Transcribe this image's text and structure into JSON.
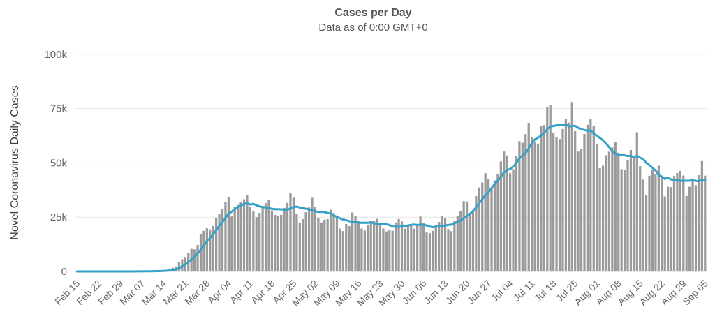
{
  "chart": {
    "title": "Cases per Day",
    "subtitle": "Data as of 0:00 GMT+0",
    "y_axis_title": "Novel Coronavirus Daily Cases"
  },
  "colors": {
    "bar": "#9a9a9a",
    "line": "#35a1c9",
    "grid": "#e6e6e6",
    "axis_line": "#ccd6eb",
    "tick_label": "#666666",
    "title_text": "#53575c"
  },
  "chart_data": {
    "type": "bar",
    "title": "Cases per Day",
    "subtitle": "Data as of 0:00 GMT+0",
    "xlabel": "",
    "ylabel": "Novel Coronavirus Daily Cases",
    "ylim": [
      0,
      100000
    ],
    "grid": "horizontal",
    "legend": "none",
    "start_date": "Feb 15",
    "end_date": "Sep 05",
    "x_tick_interval_days": 7,
    "x_tick_labels": [
      "Feb 15",
      "Feb 22",
      "Feb 29",
      "Mar 07",
      "Mar 14",
      "Mar 21",
      "Mar 28",
      "Apr 04",
      "Apr 11",
      "Apr 18",
      "Apr 25",
      "May 02",
      "May 09",
      "May 16",
      "May 23",
      "May 30",
      "Jun 06",
      "Jun 13",
      "Jun 20",
      "Jun 27",
      "Jul 04",
      "Jul 11",
      "Jul 18",
      "Jul 25",
      "Aug 01",
      "Aug 08",
      "Aug 15",
      "Aug 22",
      "Aug 29",
      "Sep 05"
    ],
    "y_ticks": [
      {
        "value": 0,
        "label": "0"
      },
      {
        "value": 25000,
        "label": "25k"
      },
      {
        "value": 50000,
        "label": "50k"
      },
      {
        "value": 75000,
        "label": "75k"
      },
      {
        "value": 100000,
        "label": "100k"
      }
    ],
    "series": [
      {
        "name": "Daily Cases",
        "type": "bar",
        "color": "#9a9a9a",
        "values": [
          0,
          0,
          0,
          0,
          0,
          0,
          0,
          0,
          0,
          0,
          0,
          0,
          0,
          0,
          8,
          6,
          23,
          20,
          31,
          26,
          59,
          78,
          130,
          120,
          202,
          271,
          331,
          277,
          511,
          777,
          1018,
          1708,
          2345,
          4257,
          5594,
          6347,
          8545,
          10410,
          10151,
          12226,
          17050,
          18695,
          19870,
          19376,
          20921,
          24742,
          26473,
          28819,
          32105,
          34196,
          25316,
          29595,
          30613,
          31898,
          33267,
          35098,
          29861,
          27620,
          25023,
          26922,
          30091,
          31449,
          32922,
          28123,
          25995,
          25468,
          26047,
          29266,
          31548,
          36188,
          33955,
          26509,
          22541,
          24132,
          27327,
          29517,
          33906,
          29744,
          24621,
          22593,
          23841,
          24128,
          28427,
          26906,
          25612,
          19731,
          18601,
          21841,
          20831,
          27143,
          25508,
          23293,
          19731,
          18873,
          21277,
          23285,
          23168,
          24266,
          21580,
          19790,
          18424,
          18957,
          18721,
          22577,
          24146,
          23024,
          19680,
          21182,
          20922,
          19699,
          21140,
          25290,
          22302,
          17919,
          17598,
          18678,
          21148,
          22800,
          25600,
          24500,
          19543,
          18577,
          23178,
          25576,
          27762,
          32411,
          32229,
          26079,
          27703,
          34700,
          38672,
          40949,
          45255,
          42486,
          38671,
          41940,
          44734,
          50655,
          55220,
          53448,
          45221,
          47102,
          53243,
          60021,
          59260,
          63247,
          68428,
          61719,
          59747,
          58858,
          67140,
          67404,
          75600,
          76570,
          63698,
          61795,
          60971,
          65594,
          70106,
          68524,
          78009,
          64582,
          55187,
          56336,
          63290,
          67574,
          70024,
          67023,
          58429,
          47576,
          48690,
          53520,
          55148,
          57120,
          59755,
          54686,
          47138,
          46754,
          51443,
          55911,
          52799,
          64107,
          48517,
          42303,
          35112,
          44091,
          46809,
          44857,
          48693,
          44079,
          34567,
          38986,
          38825,
          43957,
          45341,
          46393,
          44185,
          34767,
          38986,
          42625,
          39711,
          44357,
          50822,
          44112
        ]
      },
      {
        "name": "7-day moving average",
        "type": "line",
        "color": "#35a1c9",
        "derived": "trailing 7-day mean of Daily Cases"
      }
    ]
  }
}
